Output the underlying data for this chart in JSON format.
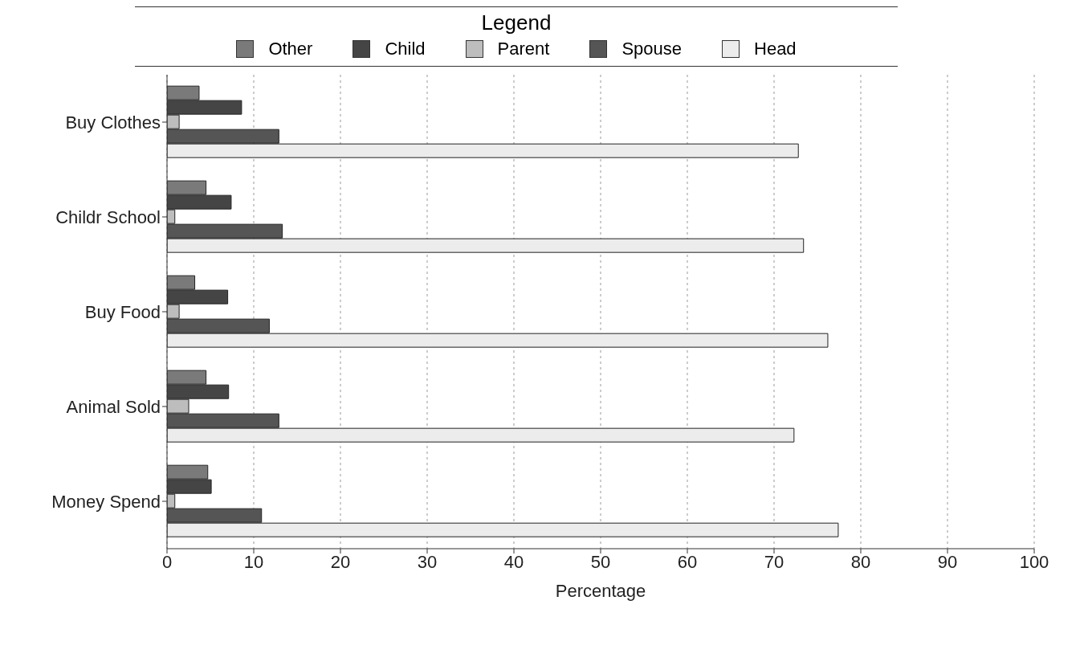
{
  "chart_data": {
    "type": "bar",
    "orientation": "horizontal",
    "xlabel": "Percentage",
    "legend_title": "Legend",
    "legend": "top",
    "categories": [
      "Buy Clothes",
      "Childr School",
      "Buy Food",
      "Animal Sold",
      "Money Spend"
    ],
    "series": [
      {
        "name": "Other",
        "color": "#7a7a7a",
        "values": [
          3.7,
          4.5,
          3.2,
          4.5,
          4.7
        ]
      },
      {
        "name": "Child",
        "color": "#454545",
        "values": [
          8.6,
          7.4,
          7,
          7.1,
          5.1
        ]
      },
      {
        "name": "Parent",
        "color": "#bdbdbd",
        "values": [
          1.4,
          0.9,
          1.4,
          2.5,
          0.9
        ]
      },
      {
        "name": "Spouse",
        "color": "#555555",
        "values": [
          12.9,
          13.3,
          11.8,
          12.9,
          10.9
        ]
      },
      {
        "name": "Head",
        "color": "#ececec",
        "values": [
          72.8,
          73.4,
          76.2,
          72.3,
          77.4
        ]
      }
    ],
    "xlim": [
      0,
      100
    ],
    "xticks": [
      0,
      10,
      20,
      30,
      40,
      50,
      60,
      70,
      80,
      90,
      100
    ],
    "grid": "x"
  }
}
